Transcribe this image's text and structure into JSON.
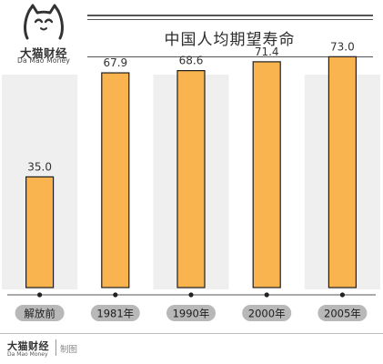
{
  "brand": {
    "name_cn": "大猫财经",
    "name_en": "Da Mao Money"
  },
  "footer": {
    "brand_cn": "大猫财经",
    "brand_en": "Da Mao Money",
    "credit": "制图"
  },
  "colors": {
    "bar_fill": "#F9B34F",
    "bar_stroke": "#1e1e1e",
    "panel_shade": "#EFEFEF",
    "label_pill": "#B8B8B8"
  },
  "chart_data": {
    "type": "bar",
    "title": "中国人均期望寿命",
    "categories": [
      "解放前",
      "1981年",
      "1990年",
      "2000年",
      "2005年"
    ],
    "values": [
      35.0,
      67.9,
      68.6,
      71.4,
      73.0
    ],
    "value_labels": [
      "35.0",
      "67.9",
      "68.6",
      "71.4",
      "73.0"
    ],
    "ylim": [
      0,
      80
    ],
    "xlabel": "",
    "ylabel": "",
    "grid": false,
    "legend": "none"
  }
}
